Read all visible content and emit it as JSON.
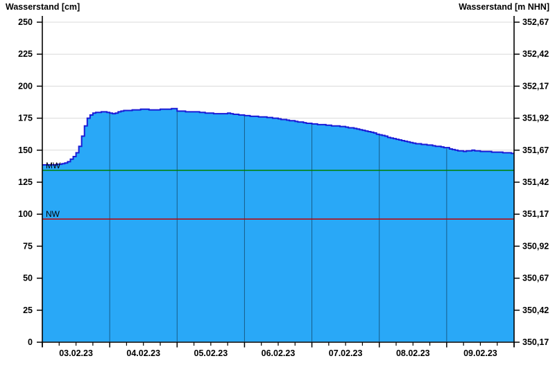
{
  "chart_data": {
    "type": "area",
    "title_left": "Wasserstand [cm]",
    "title_right": "Wasserstand [m NHN]",
    "x_days": [
      "03.02.23",
      "04.02.23",
      "05.02.23",
      "06.02.23",
      "07.02.23",
      "08.02.23",
      "09.02.23"
    ],
    "x_range_hours": [
      0,
      168
    ],
    "x_minor_tick_hours": 6,
    "ylim_cm": [
      0,
      250
    ],
    "y_left_ticks": [
      0,
      25,
      50,
      75,
      100,
      125,
      150,
      175,
      200,
      225,
      250
    ],
    "y_right_tick_labels": [
      "350,17",
      "350,42",
      "350,67",
      "350,92",
      "351,17",
      "351,42",
      "351,67",
      "351,92",
      "352,17",
      "352,42",
      "352,67"
    ],
    "grid": {
      "horizontal": true,
      "vertical_at_midnight": true
    },
    "series": [
      {
        "name": "Wasserstand",
        "fill_color": "#29a8f7",
        "line_color": "#1a1ad6",
        "points_hours_cm": [
          [
            0,
            138.5
          ],
          [
            3,
            138.5
          ],
          [
            6,
            139
          ],
          [
            8,
            140
          ],
          [
            9,
            141
          ],
          [
            10,
            143
          ],
          [
            11,
            145
          ],
          [
            12,
            148
          ],
          [
            13,
            153
          ],
          [
            14,
            161
          ],
          [
            15,
            169
          ],
          [
            16,
            175
          ],
          [
            17,
            177.5
          ],
          [
            18,
            179
          ],
          [
            20,
            179.5
          ],
          [
            22,
            180
          ],
          [
            23.5,
            179.5
          ],
          [
            24,
            179
          ],
          [
            25,
            178.5
          ],
          [
            26,
            179
          ],
          [
            28,
            180.5
          ],
          [
            30,
            181
          ],
          [
            33,
            181.5
          ],
          [
            36,
            182
          ],
          [
            39,
            181.5
          ],
          [
            42,
            181.8
          ],
          [
            45,
            182
          ],
          [
            47,
            182.5
          ],
          [
            47.6,
            183
          ],
          [
            48,
            180.5
          ],
          [
            51,
            180.2
          ],
          [
            54,
            180
          ],
          [
            57,
            179.3
          ],
          [
            60,
            178.8
          ],
          [
            63,
            178.3
          ],
          [
            66,
            178.8
          ],
          [
            69,
            177.8
          ],
          [
            72,
            177
          ],
          [
            75,
            176.5
          ],
          [
            78,
            176
          ],
          [
            81,
            175.3
          ],
          [
            84,
            174.5
          ],
          [
            87,
            173.5
          ],
          [
            90,
            172.5
          ],
          [
            93,
            171.5
          ],
          [
            96,
            170.5
          ],
          [
            100,
            169.8
          ],
          [
            104,
            169
          ],
          [
            108,
            168
          ],
          [
            112,
            166.5
          ],
          [
            116,
            164.5
          ],
          [
            120,
            162
          ],
          [
            124,
            159.5
          ],
          [
            128,
            157.5
          ],
          [
            132,
            155.5
          ],
          [
            136,
            154.3
          ],
          [
            140,
            153.2
          ],
          [
            144,
            151.8
          ],
          [
            147,
            150
          ],
          [
            150,
            149.2
          ],
          [
            153,
            150
          ],
          [
            156,
            149.2
          ],
          [
            160,
            148.7
          ],
          [
            164,
            148.2
          ],
          [
            168,
            147.5
          ]
        ]
      }
    ],
    "reference_lines": [
      {
        "label": "MW",
        "value_cm": 134.3,
        "color": "#008000"
      },
      {
        "label": "NW",
        "value_cm": 96.2,
        "color": "#c00000"
      }
    ],
    "colors": {
      "axis": "#000000",
      "h_grid": "#d9d9d9",
      "v_grid": "rgba(0,0,0,0.45)",
      "tick_label": "#000000"
    }
  }
}
